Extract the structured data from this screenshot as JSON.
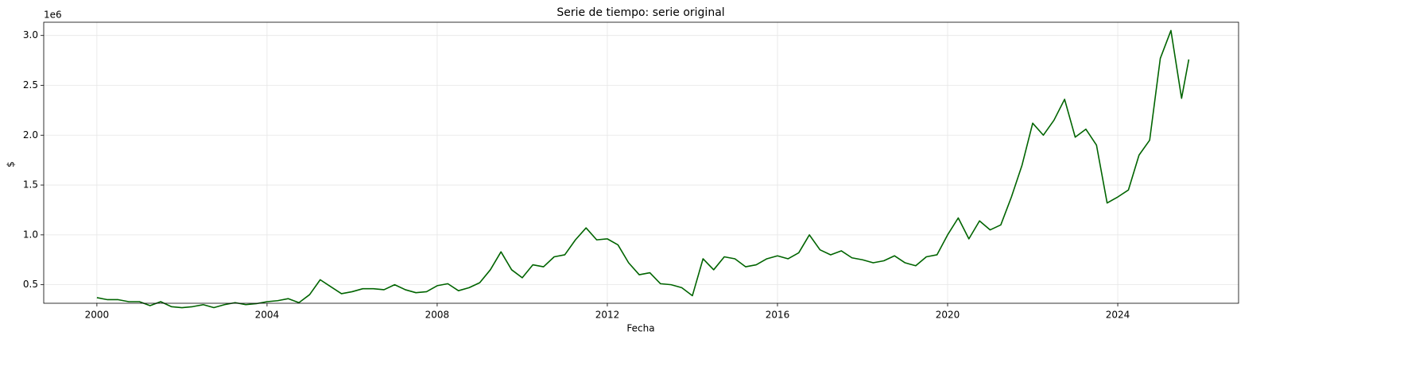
{
  "chart_data": {
    "type": "line",
    "title": "Serie de tiempo: serie original",
    "x_label": "Fecha",
    "y_label": "$",
    "y_offset_label": "1e6",
    "x": [
      2000,
      2000.25,
      2000.5,
      2000.75,
      2001,
      2001.25,
      2001.5,
      2001.75,
      2002,
      2002.25,
      2002.5,
      2002.75,
      2003,
      2003.25,
      2003.5,
      2003.75,
      2004,
      2004.25,
      2004.5,
      2004.75,
      2005,
      2005.25,
      2005.5,
      2005.75,
      2006,
      2006.25,
      2006.5,
      2006.75,
      2007,
      2007.25,
      2007.5,
      2007.75,
      2008,
      2008.25,
      2008.5,
      2008.75,
      2009,
      2009.25,
      2009.5,
      2009.75,
      2010,
      2010.25,
      2010.5,
      2010.75,
      2011,
      2011.25,
      2011.5,
      2011.75,
      2012,
      2012.25,
      2012.5,
      2012.75,
      2013,
      2013.25,
      2013.5,
      2013.75,
      2014,
      2014.25,
      2014.5,
      2014.75,
      2015,
      2015.25,
      2015.5,
      2015.75,
      2016,
      2016.25,
      2016.5,
      2016.75,
      2017,
      2017.25,
      2017.5,
      2017.75,
      2018,
      2018.25,
      2018.5,
      2018.75,
      2019,
      2019.25,
      2019.5,
      2019.75,
      2020,
      2020.25,
      2020.5,
      2020.75,
      2021,
      2021.25,
      2021.5,
      2021.75,
      2022,
      2022.25,
      2022.5,
      2022.75,
      2023,
      2023.25,
      2023.5,
      2023.75,
      2024,
      2024.25,
      2024.5,
      2024.75,
      2025,
      2025.25,
      2025.5,
      2025.67
    ],
    "values": [
      0.37,
      0.35,
      0.35,
      0.33,
      0.33,
      0.29,
      0.33,
      0.28,
      0.27,
      0.28,
      0.3,
      0.27,
      0.3,
      0.32,
      0.3,
      0.31,
      0.33,
      0.34,
      0.36,
      0.32,
      0.4,
      0.55,
      0.48,
      0.41,
      0.43,
      0.46,
      0.46,
      0.45,
      0.5,
      0.45,
      0.42,
      0.43,
      0.49,
      0.51,
      0.44,
      0.47,
      0.52,
      0.65,
      0.83,
      0.65,
      0.57,
      0.7,
      0.68,
      0.78,
      0.8,
      0.95,
      1.07,
      0.95,
      0.96,
      0.9,
      0.72,
      0.6,
      0.62,
      0.51,
      0.5,
      0.47,
      0.39,
      0.76,
      0.65,
      0.78,
      0.76,
      0.68,
      0.7,
      0.76,
      0.79,
      0.76,
      0.82,
      1.0,
      0.85,
      0.8,
      0.84,
      0.77,
      0.75,
      0.72,
      0.74,
      0.79,
      0.72,
      0.69,
      0.78,
      0.8,
      1.0,
      1.17,
      0.96,
      1.14,
      1.05,
      1.1,
      1.38,
      1.7,
      2.12,
      2.0,
      2.15,
      2.36,
      1.98,
      2.06,
      1.9,
      1.32,
      1.38,
      1.45,
      1.8,
      1.95,
      2.77,
      3.05,
      2.37,
      2.76
    ],
    "color": "#006400",
    "xlim": [
      1998.75,
      2026.84
    ],
    "xticks": [
      2000,
      2004,
      2008,
      2012,
      2016,
      2020,
      2024
    ],
    "ylim": [
      0.314,
      3.133
    ],
    "yticks": [
      0.5,
      1.0,
      1.5,
      2.0,
      2.5,
      3.0
    ],
    "grid": true
  }
}
